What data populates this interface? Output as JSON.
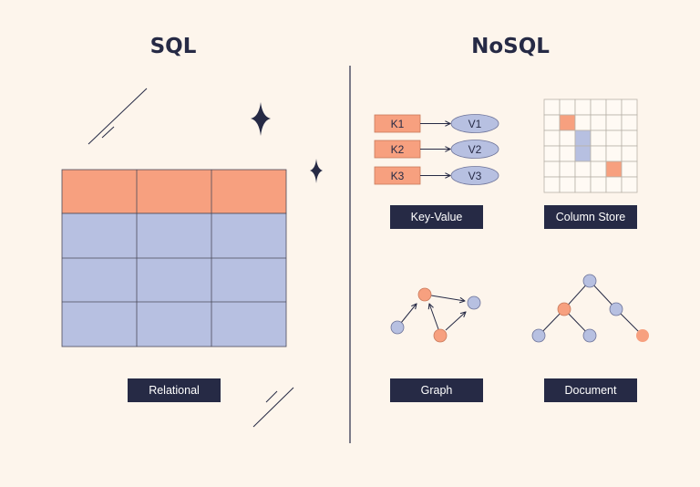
{
  "colors": {
    "background": "#fdf5ec",
    "navy": "#262a45",
    "orange": "#f7a07f",
    "blue": "#b7c0e1",
    "grid": "#b8b2a8"
  },
  "sql": {
    "title": "SQL",
    "label": "Relational",
    "table": {
      "rows": 4,
      "columns": 3,
      "header_rows": 1
    }
  },
  "nosql": {
    "title": "NoSQL",
    "key_value": {
      "label": "Key-Value",
      "pairs": [
        {
          "key": "K1",
          "value": "V1"
        },
        {
          "key": "K2",
          "value": "V2"
        },
        {
          "key": "K3",
          "value": "V3"
        }
      ]
    },
    "column_store": {
      "label": "Column Store"
    },
    "graph": {
      "label": "Graph"
    },
    "document": {
      "label": "Document"
    }
  }
}
